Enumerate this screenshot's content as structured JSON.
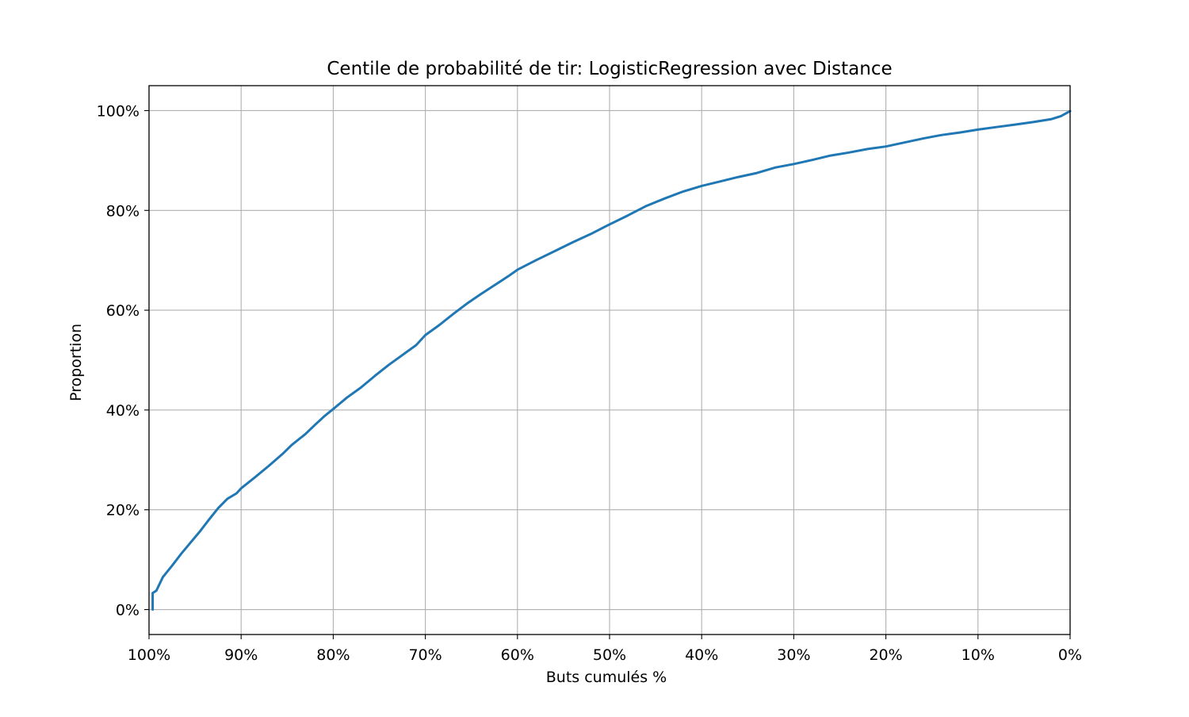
{
  "chart_data": {
    "type": "line",
    "title": "Centile de probabilité de tir: LogisticRegression avec Distance",
    "xlabel": "Buts cumulés %",
    "ylabel": "Proportion",
    "xlim": [
      100,
      0
    ],
    "ylim": [
      -5,
      105
    ],
    "x_reversed": true,
    "grid": true,
    "x_ticks": [
      100,
      90,
      80,
      70,
      60,
      50,
      40,
      30,
      20,
      10,
      0
    ],
    "x_tick_labels": [
      "100%",
      "90%",
      "80%",
      "70%",
      "60%",
      "50%",
      "40%",
      "30%",
      "20%",
      "10%",
      "0%"
    ],
    "y_ticks": [
      0,
      20,
      40,
      60,
      80,
      100
    ],
    "y_tick_labels": [
      "0%",
      "20%",
      "40%",
      "60%",
      "80%",
      "100%"
    ],
    "series": [
      {
        "color": "#1f77b4",
        "x": [
          99.6,
          99.6,
          99.2,
          98.5,
          97.5,
          96.5,
          95.5,
          94.5,
          93.5,
          92.5,
          91.5,
          90.5,
          90,
          88.5,
          87,
          85.5,
          84.5,
          83,
          82,
          81,
          80,
          78.5,
          77,
          75.5,
          74,
          72.5,
          71,
          70,
          68.5,
          67,
          65.5,
          64,
          62.5,
          61,
          60,
          58,
          56,
          54,
          52,
          50,
          48,
          46,
          44,
          42,
          40,
          38,
          36,
          34,
          32,
          30,
          28,
          26,
          24,
          22,
          20,
          18,
          16,
          14,
          12,
          10,
          8,
          6,
          4,
          2,
          1,
          0
        ],
        "y": [
          0,
          3.3,
          3.8,
          6.5,
          8.8,
          11.2,
          13.4,
          15.6,
          18,
          20.3,
          22.2,
          23.3,
          24.3,
          26.5,
          28.8,
          31.2,
          33,
          35.2,
          37,
          38.7,
          40.2,
          42.5,
          44.5,
          46.8,
          49,
          51,
          53,
          55,
          57,
          59.2,
          61.3,
          63.2,
          65,
          66.8,
          68.1,
          70,
          71.8,
          73.6,
          75.3,
          77.2,
          79,
          80.9,
          82.4,
          83.8,
          84.9,
          85.8,
          86.7,
          87.5,
          88.6,
          89.3,
          90.1,
          91,
          91.6,
          92.3,
          92.8,
          93.6,
          94.4,
          95.1,
          95.6,
          96.2,
          96.7,
          97.2,
          97.7,
          98.3,
          98.9,
          99.9
        ]
      }
    ]
  }
}
